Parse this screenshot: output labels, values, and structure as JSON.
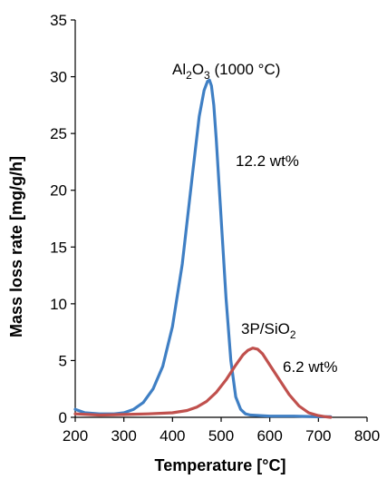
{
  "chart_data": {
    "type": "line",
    "xlabel": "Temperature [°C]",
    "ylabel": "Mass loss rate [mg/g/h]",
    "xlim": [
      200,
      800
    ],
    "ylim": [
      0,
      35
    ],
    "x_ticks": [
      "200",
      "300",
      "400",
      "500",
      "600",
      "700",
      "800"
    ],
    "y_ticks": [
      "0",
      "5",
      "10",
      "15",
      "20",
      "25",
      "30",
      "35"
    ],
    "grid": false,
    "legend": "none",
    "series": [
      {
        "color": "#3f7fc4",
        "x": [
          200,
          220,
          250,
          280,
          300,
          320,
          340,
          360,
          380,
          400,
          420,
          440,
          455,
          465,
          472,
          476,
          480,
          485,
          490,
          500,
          510,
          520,
          530,
          540,
          550,
          560,
          580,
          600,
          650,
          700,
          725
        ],
        "y": [
          0.7,
          0.4,
          0.3,
          0.3,
          0.4,
          0.7,
          1.3,
          2.5,
          4.5,
          8.0,
          13.5,
          21.0,
          26.5,
          28.8,
          29.6,
          29.7,
          29.2,
          27.5,
          24.5,
          17.5,
          10.5,
          5.0,
          1.8,
          0.7,
          0.3,
          0.2,
          0.15,
          0.1,
          0.1,
          0.05,
          0.05
        ]
      },
      {
        "color": "#c0504d",
        "x": [
          200,
          250,
          300,
          350,
          400,
          430,
          450,
          470,
          490,
          510,
          530,
          545,
          555,
          565,
          575,
          585,
          600,
          620,
          640,
          660,
          680,
          700,
          715,
          725
        ],
        "y": [
          0.3,
          0.2,
          0.25,
          0.3,
          0.4,
          0.6,
          0.9,
          1.4,
          2.2,
          3.3,
          4.6,
          5.5,
          5.9,
          6.1,
          6.0,
          5.6,
          4.6,
          3.3,
          2.0,
          1.0,
          0.4,
          0.15,
          0.05,
          0.0
        ]
      }
    ]
  },
  "annotations": {
    "al2o3_label_main": "Al",
    "al2o3_sub_1": "2",
    "al2o3_mid": "O",
    "al2o3_sub_2": "3",
    "al2o3_suffix": " (1000 °C)",
    "al2o3_wt": "12.2 wt%",
    "sio2_label_main": "3P/SiO",
    "sio2_sub": "2",
    "sio2_wt": "6.2 wt%"
  }
}
